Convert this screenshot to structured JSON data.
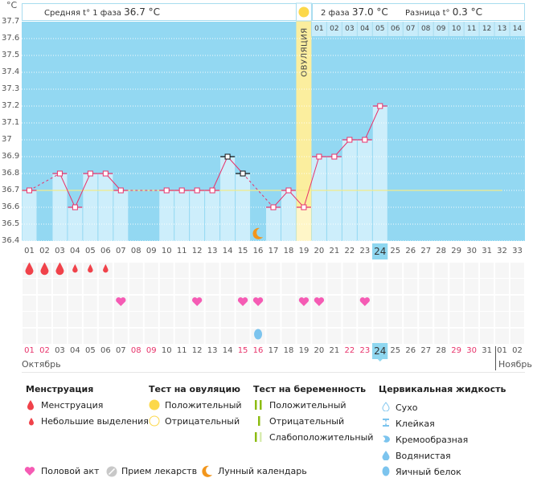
{
  "header": {
    "unit": "°C",
    "phase1_label": "Средняя t° 1 фаза",
    "phase1_value": "36.7 °C",
    "phase2_label": "2 фаза",
    "phase2_value": "37.0 °C",
    "diff_label": "Разница t°",
    "diff_value": "0.3 °C",
    "ovulation_label": "ОВУЛЯЦИЯ"
  },
  "chart_data": {
    "type": "line",
    "title": "",
    "ylabel": "°C",
    "xlabel": "",
    "ylim": [
      36.4,
      37.7
    ],
    "yticks": [
      "37.7",
      "37.6",
      "37.5",
      "37.4",
      "37.3",
      "37.2",
      "37.1",
      "37",
      "36.9",
      "36.8",
      "36.7",
      "36.6",
      "36.5",
      "36.4"
    ],
    "cycle_days": [
      "01",
      "02",
      "03",
      "04",
      "05",
      "06",
      "07",
      "08",
      "09",
      "10",
      "11",
      "12",
      "13",
      "14",
      "15",
      "16",
      "17",
      "18",
      "19",
      "20",
      "21",
      "22",
      "23",
      "24",
      "25",
      "26",
      "27",
      "28",
      "29",
      "30",
      "31",
      "32",
      "33"
    ],
    "series": [
      {
        "name": "Базальная температура",
        "color": "#e8336b",
        "values": [
          36.7,
          null,
          36.8,
          36.6,
          36.8,
          36.8,
          36.7,
          null,
          null,
          36.7,
          36.7,
          36.7,
          36.7,
          36.9,
          36.8,
          null,
          36.6,
          36.7,
          36.6,
          36.9,
          36.9,
          37.0,
          37.0,
          37.2,
          null,
          null,
          null,
          null,
          null,
          null,
          null,
          null,
          null
        ],
        "excluded_days": [
          14,
          15
        ]
      }
    ],
    "cover_line": {
      "value": 36.7,
      "color": "#f2ea8a",
      "to_day": 32
    },
    "ovulation_day": 19,
    "phase2_header_days": [
      "01",
      "02",
      "03",
      "04",
      "05",
      "06",
      "07",
      "08",
      "09",
      "10",
      "11",
      "12",
      "13",
      "14"
    ],
    "today_day": 24,
    "grid": true
  },
  "calendar": {
    "dates": [
      "01",
      "02",
      "03",
      "04",
      "05",
      "06",
      "07",
      "08",
      "09",
      "10",
      "11",
      "12",
      "13",
      "14",
      "15",
      "16",
      "17",
      "18",
      "19",
      "20",
      "21",
      "22",
      "23",
      "24",
      "25",
      "26",
      "27",
      "28",
      "29",
      "30",
      "31",
      "01",
      "02"
    ],
    "weekend_indices": [
      0,
      1,
      7,
      8,
      14,
      15,
      21,
      22,
      28,
      29
    ],
    "month_oct": "Октябрь",
    "month_nov": "Ноябрь"
  },
  "events": {
    "menstruation": [
      {
        "day": 1,
        "type": "heavy"
      },
      {
        "day": 2,
        "type": "heavy"
      },
      {
        "day": 3,
        "type": "heavy"
      },
      {
        "day": 4,
        "type": "light"
      },
      {
        "day": 5,
        "type": "light"
      },
      {
        "day": 6,
        "type": "light"
      }
    ],
    "intercourse_days": [
      7,
      12,
      15,
      16,
      19,
      20,
      23
    ],
    "cervical": [
      {
        "day": 16,
        "type": "egg-white"
      }
    ],
    "moon_day": 16
  },
  "colors": {
    "chart_bg": "#93d8f2",
    "bar": "#cdeefb",
    "line": "#e8336b",
    "ovulation": "#fbee9e",
    "menstruation": "#f0424a",
    "heart": "#f55bb4",
    "cervical": "#7cc4ee",
    "moon": "#f2961c",
    "sun": "#fcd84a",
    "preg_test": "#8cbc12"
  },
  "legend": {
    "menstruation": {
      "title": "Менструация",
      "items": [
        "Менструация",
        "Небольшие выделения"
      ]
    },
    "ovulation_test": {
      "title": "Тест на овуляцию",
      "items": [
        "Положительный",
        "Отрицательный"
      ]
    },
    "pregnancy_test": {
      "title": "Тест на беременность",
      "items": [
        "Положительный",
        "Отрицательный",
        "Слабоположительный"
      ]
    },
    "cervical_fluid": {
      "title": "Цервикальная жидкость",
      "items": [
        "Сухо",
        "Клейкая",
        "Кремообразная",
        "Водянистая",
        "Яичный белок"
      ]
    },
    "bottom": [
      "Половой акт",
      "Прием лекарств",
      "Лунный календарь"
    ]
  }
}
